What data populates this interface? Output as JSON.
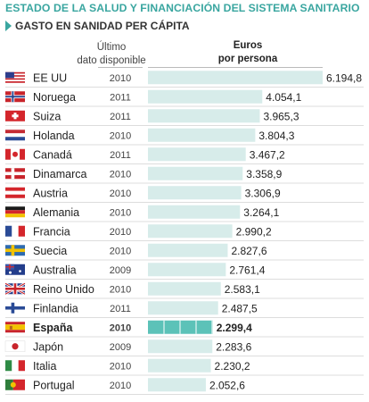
{
  "header": {
    "title": "ESTADO DE LA SALUD Y FINANCIACIÓN DEL SISTEMA SANITARIO",
    "subtitle": "GASTO EN SANIDAD PER CÁPITA",
    "col_year_line1": "Último",
    "col_year_line2": "dato disponible",
    "col_value_line1": "Euros",
    "col_value_line2": "por persona"
  },
  "colors": {
    "accent": "#3aa6a0",
    "bar": "#d7ecea",
    "bar_highlight": "#5cc2b8",
    "row_separator": "#dddddd"
  },
  "chart_data": {
    "type": "bar",
    "title": "GASTO EN SANIDAD PER CÁPITA",
    "xlabel": "",
    "ylabel": "Euros por persona",
    "orientation": "horizontal",
    "highlight": "España",
    "categories": [
      "EE UU",
      "Noruega",
      "Suiza",
      "Holanda",
      "Canadá",
      "Dinamarca",
      "Austria",
      "Alemania",
      "Francia",
      "Suecia",
      "Australia",
      "Reino Unido",
      "Finlandia",
      "España",
      "Japón",
      "Italia",
      "Portugal"
    ],
    "years": [
      "2010",
      "2011",
      "2011",
      "2010",
      "2011",
      "2010",
      "2010",
      "2010",
      "2010",
      "2010",
      "2009",
      "2010",
      "2011",
      "2010",
      "2009",
      "2010",
      "2010"
    ],
    "labels": [
      "6.194,8",
      "4.054,1",
      "3.965,3",
      "3.804,3",
      "3.467,2",
      "3.358,9",
      "3.306,9",
      "3.264,1",
      "2.990,2",
      "2.827,6",
      "2.761,4",
      "2.583,1",
      "2.487,5",
      "2.299,4",
      "2.283,6",
      "2.230,2",
      "2.052,6"
    ],
    "values": [
      6194.8,
      4054.1,
      3965.3,
      3804.3,
      3467.2,
      3358.9,
      3306.9,
      3264.1,
      2990.2,
      2827.6,
      2761.4,
      2583.1,
      2487.5,
      2299.4,
      2283.6,
      2230.2,
      2052.6
    ],
    "flags": [
      "us-flag-icon",
      "norway-flag-icon",
      "switzerland-flag-icon",
      "netherlands-flag-icon",
      "canada-flag-icon",
      "denmark-flag-icon",
      "austria-flag-icon",
      "germany-flag-icon",
      "france-flag-icon",
      "sweden-flag-icon",
      "australia-flag-icon",
      "uk-flag-icon",
      "finland-flag-icon",
      "spain-flag-icon",
      "japan-flag-icon",
      "italy-flag-icon",
      "portugal-flag-icon"
    ]
  }
}
